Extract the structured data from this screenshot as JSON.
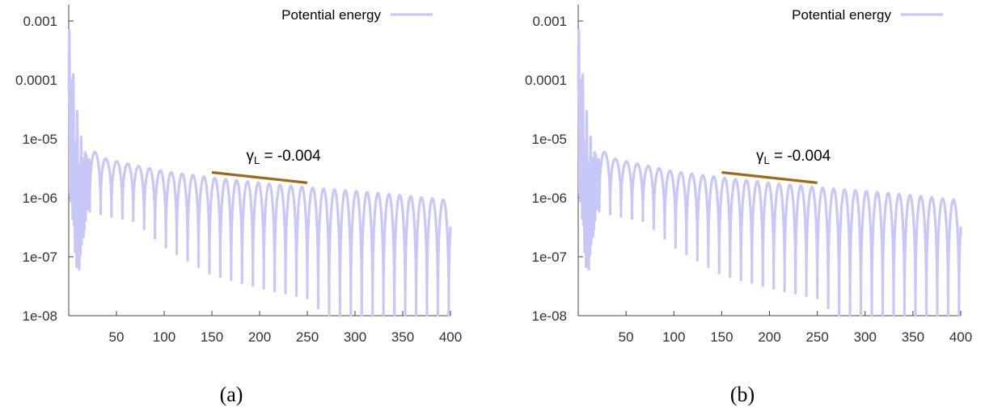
{
  "colors": {
    "series": "#c8c8f8",
    "fit_line": "#a06a14",
    "axis": "#444444",
    "text": "#333333"
  },
  "chart_data": [
    {
      "type": "line",
      "caption": "(a)",
      "legend": {
        "placement": "top-right"
      },
      "grid": false,
      "xlim": [
        0,
        400
      ],
      "ylim": [
        1e-08,
        0.001
      ],
      "yscale": "log",
      "x_ticks": [
        "50",
        "100",
        "150",
        "200",
        "250",
        "300",
        "350",
        "400"
      ],
      "y_ticks": [
        "0.001",
        "0.0001",
        "1e-05",
        "1e-06",
        "1e-07",
        "1e-08"
      ],
      "series": [
        {
          "name": "Potential energy",
          "color": "#c8c8f8",
          "envelope": {
            "peak_points": [
              [
                0.5,
                0.0012
              ],
              [
                3,
                0.0003
              ],
              [
                6,
                8e-05
              ],
              [
                10,
                2e-05
              ],
              [
                15,
                8e-06
              ],
              [
                20,
                6e-06
              ],
              [
                26,
                6.2e-06
              ],
              [
                40,
                4.5e-06
              ],
              [
                100,
                2.8e-06
              ],
              [
                150,
                2.2e-06
              ],
              [
                200,
                1.8e-06
              ],
              [
                250,
                1.5e-06
              ],
              [
                300,
                1.3e-06
              ],
              [
                350,
                1.1e-06
              ],
              [
                400,
                9e-07
              ]
            ],
            "trough_points": [
              [
                3,
                6e-07
              ],
              [
                9,
                3e-08
              ],
              [
                20,
                6e-07
              ],
              [
                40,
                5e-07
              ],
              [
                70,
                4e-07
              ],
              [
                100,
                1.5e-07
              ],
              [
                150,
                5e-08
              ],
              [
                200,
                3e-08
              ],
              [
                250,
                2e-08
              ],
              [
                270,
                1e-08
              ],
              [
                400,
                1e-08
              ]
            ],
            "oscillation_period": 11.4,
            "final_value": 2.5e-07
          }
        }
      ],
      "annotations": [
        {
          "label": "γ",
          "subscript": "L",
          "value_text": " = -0.004",
          "line": {
            "x": [
              150,
              250
            ],
            "y": [
              2.7e-06,
              1.8e-06
            ]
          }
        }
      ]
    },
    {
      "type": "line",
      "caption": "(b)",
      "legend": {
        "placement": "top-right"
      },
      "grid": false,
      "xlim": [
        0,
        400
      ],
      "ylim": [
        1e-08,
        0.001
      ],
      "yscale": "log",
      "x_ticks": [
        "50",
        "100",
        "150",
        "200",
        "250",
        "300",
        "350",
        "400"
      ],
      "y_ticks": [
        "0.001",
        "0.0001",
        "1e-05",
        "1e-06",
        "1e-07",
        "1e-08"
      ],
      "series": [
        {
          "name": "Potential energy",
          "color": "#c8c8f8",
          "envelope": {
            "peak_points": [
              [
                0.5,
                0.0012
              ],
              [
                3,
                0.0003
              ],
              [
                6,
                8e-05
              ],
              [
                10,
                2e-05
              ],
              [
                15,
                8e-06
              ],
              [
                20,
                6e-06
              ],
              [
                26,
                6.2e-06
              ],
              [
                40,
                4.5e-06
              ],
              [
                100,
                2.8e-06
              ],
              [
                150,
                2.2e-06
              ],
              [
                200,
                1.8e-06
              ],
              [
                250,
                1.5e-06
              ],
              [
                300,
                1.3e-06
              ],
              [
                350,
                1.1e-06
              ],
              [
                400,
                9e-07
              ]
            ],
            "trough_points": [
              [
                3,
                6e-07
              ],
              [
                9,
                3e-08
              ],
              [
                20,
                6e-07
              ],
              [
                40,
                5e-07
              ],
              [
                70,
                4e-07
              ],
              [
                100,
                1.5e-07
              ],
              [
                150,
                5e-08
              ],
              [
                200,
                3e-08
              ],
              [
                250,
                2e-08
              ],
              [
                270,
                1e-08
              ],
              [
                400,
                1e-08
              ]
            ],
            "oscillation_period": 11.4,
            "final_value": 2.2e-07
          }
        }
      ],
      "annotations": [
        {
          "label": "γ",
          "subscript": "L",
          "value_text": " = -0.004",
          "line": {
            "x": [
              150,
              250
            ],
            "y": [
              2.7e-06,
              1.8e-06
            ]
          }
        }
      ]
    }
  ]
}
